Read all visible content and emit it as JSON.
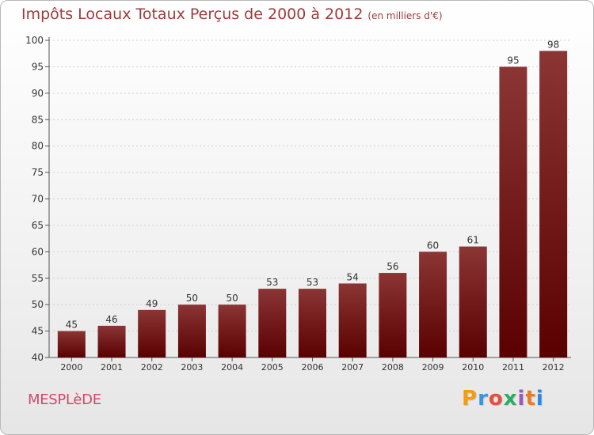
{
  "header": {
    "title": "Impôts Locaux Totaux Perçus de 2000 à 2012",
    "subtitle": "(en milliers d'€)"
  },
  "footer": {
    "commune": "MESPLèDE",
    "brand_letters": [
      "P",
      "r",
      "o",
      "x",
      "i",
      "t",
      "i"
    ],
    "brand_colors": [
      "#f39c12",
      "#3498db",
      "#e74c3c",
      "#27ae60",
      "#9b59b6",
      "#e67e22",
      "#2e86de"
    ]
  },
  "chart_data": {
    "type": "bar",
    "title": "Impôts Locaux Totaux Perçus de 2000 à 2012",
    "xlabel": "",
    "ylabel": "",
    "categories": [
      "2000",
      "2001",
      "2002",
      "2003",
      "2004",
      "2005",
      "2006",
      "2007",
      "2008",
      "2009",
      "2010",
      "2011",
      "2012"
    ],
    "values": [
      45,
      46,
      49,
      50,
      50,
      53,
      53,
      54,
      56,
      60,
      61,
      95,
      98
    ],
    "ylim": [
      40,
      100
    ],
    "yticks": [
      40,
      45,
      50,
      55,
      60,
      65,
      70,
      75,
      80,
      85,
      90,
      95,
      100
    ],
    "grid": true,
    "bar_color_top": "#8b3535",
    "bar_color_bottom": "#5a0000"
  }
}
